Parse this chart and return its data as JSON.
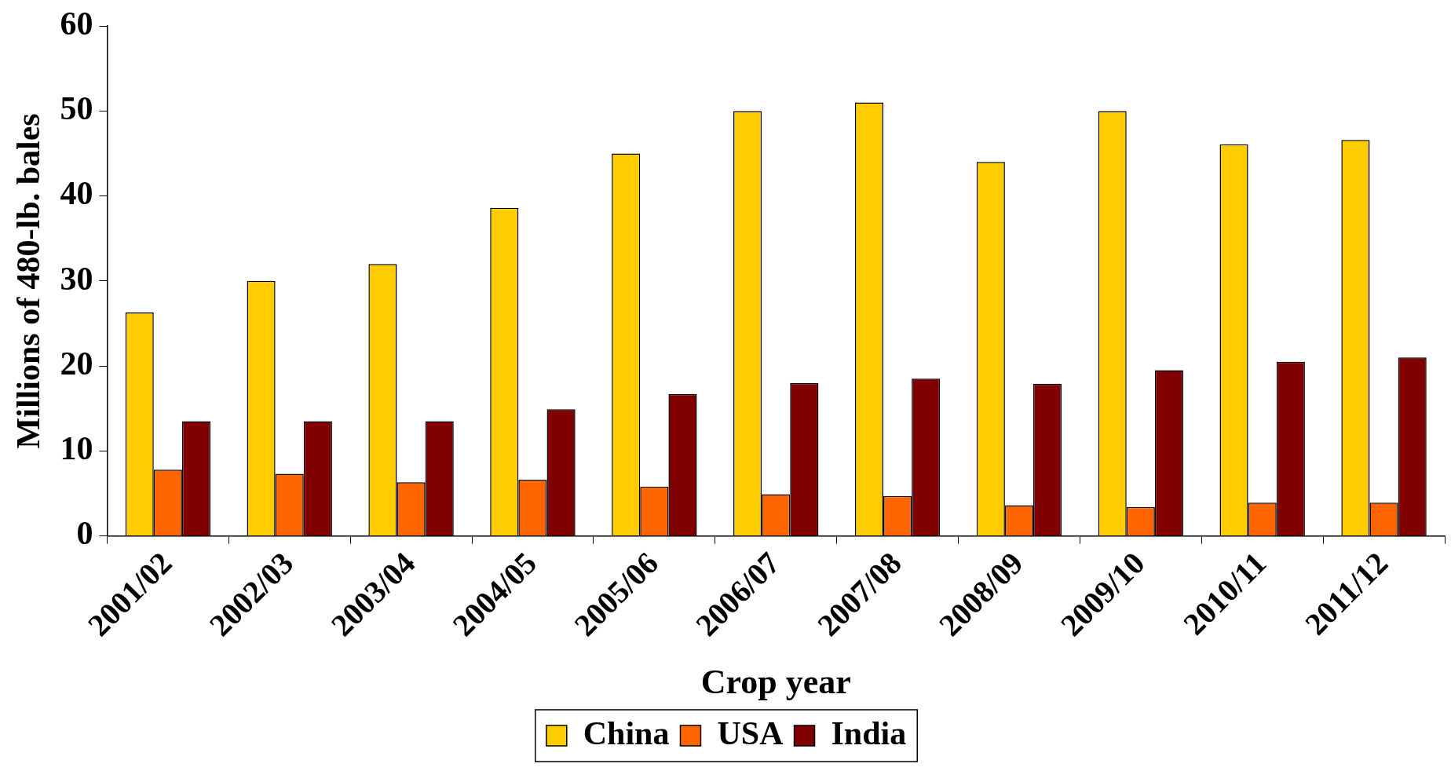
{
  "chart_data": {
    "type": "bar",
    "xlabel": "Crop year",
    "ylabel": "Millions of 480-lb. bales",
    "categories": [
      "2001/02",
      "2002/03",
      "2003/04",
      "2004/05",
      "2005/06",
      "2006/07",
      "2007/08",
      "2008/09",
      "2009/10",
      "2010/11",
      "2011/12"
    ],
    "series": [
      {
        "name": "China",
        "color": "#ffcc00",
        "values": [
          26.3,
          30,
          32,
          38.6,
          45,
          50,
          51,
          44,
          50,
          46.1,
          46.6
        ]
      },
      {
        "name": "USA",
        "color": "#ff6600",
        "values": [
          7.8,
          7.3,
          6.3,
          6.6,
          5.8,
          4.9,
          4.7,
          3.6,
          3.4,
          3.9,
          3.9
        ]
      },
      {
        "name": "India",
        "color": "#800000",
        "values": [
          13.5,
          13.5,
          13.5,
          14.9,
          16.7,
          18,
          18.5,
          17.9,
          19.5,
          20.5,
          21
        ]
      }
    ],
    "ylim": [
      0,
      60
    ],
    "yticks": [
      0,
      10,
      20,
      30,
      40,
      50,
      60
    ],
    "grid": false,
    "legend": "bottom"
  }
}
